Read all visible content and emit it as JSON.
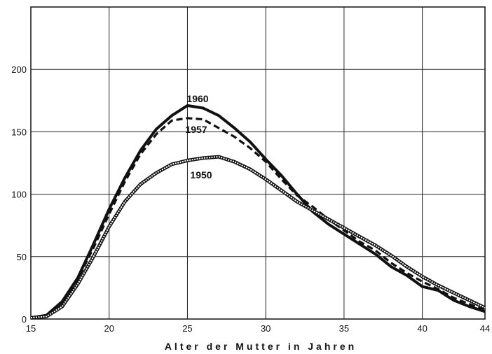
{
  "chart_data": {
    "type": "line",
    "title": "",
    "xlabel": "Alter der Mutter in Jahren",
    "ylabel": "",
    "xlim": [
      15,
      44
    ],
    "ylim": [
      0,
      250
    ],
    "x_ticks": [
      15,
      20,
      25,
      30,
      35,
      40,
      44
    ],
    "y_ticks": [
      0,
      50,
      100,
      150,
      200
    ],
    "grid": true,
    "x": [
      15,
      16,
      17,
      18,
      19,
      20,
      21,
      22,
      23,
      24,
      25,
      26,
      27,
      28,
      29,
      30,
      31,
      32,
      33,
      34,
      35,
      36,
      37,
      38,
      39,
      40,
      41,
      42,
      43,
      44
    ],
    "series": [
      {
        "name": "1960",
        "style": "solid-thick",
        "color": "#111111",
        "values": [
          1,
          3,
          14,
          33,
          60,
          88,
          113,
          135,
          152,
          163,
          171,
          169,
          163,
          153,
          142,
          128,
          115,
          100,
          86,
          76,
          68,
          60,
          52,
          42,
          35,
          26,
          23,
          15,
          10,
          6
        ]
      },
      {
        "name": "1957",
        "style": "dashed",
        "color": "#111111",
        "values": [
          1,
          3,
          13,
          32,
          57,
          84,
          110,
          132,
          148,
          159,
          161,
          160,
          153,
          146,
          137,
          126,
          112,
          99,
          90,
          80,
          71,
          62,
          55,
          45,
          37,
          30,
          24,
          17,
          12,
          7
        ]
      },
      {
        "name": "1950",
        "style": "double-line",
        "color": "#111111",
        "values": [
          1,
          2,
          10,
          28,
          50,
          74,
          94,
          108,
          117,
          124,
          127,
          129,
          130,
          126,
          120,
          112,
          103,
          94,
          87,
          80,
          73,
          66,
          59,
          51,
          42,
          34,
          27,
          21,
          15,
          9
        ]
      }
    ]
  }
}
